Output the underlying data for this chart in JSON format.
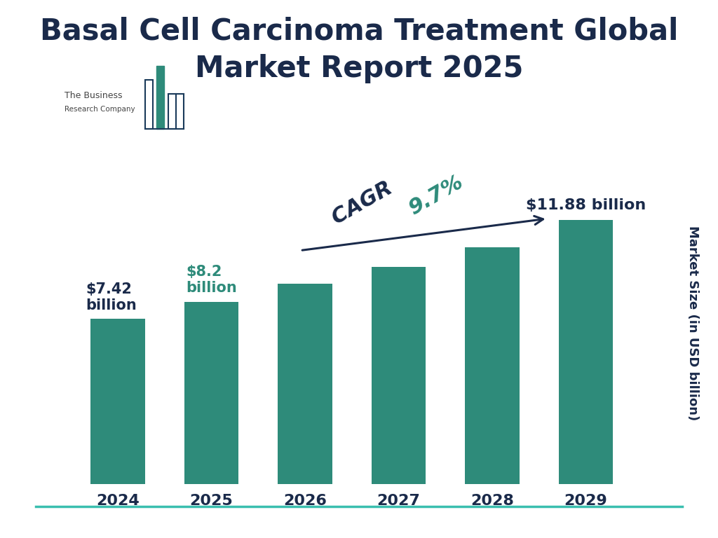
{
  "title": "Basal Cell Carcinoma Treatment Global\nMarket Report 2025",
  "title_color": "#1a2a4a",
  "title_fontsize": 30,
  "categories": [
    "2024",
    "2025",
    "2026",
    "2027",
    "2028",
    "2029"
  ],
  "values": [
    7.42,
    8.2,
    9.0,
    9.75,
    10.65,
    11.88
  ],
  "bar_color": "#2e8b7a",
  "bar_width": 0.58,
  "ylabel": "Market Size (in USD billion)",
  "ylabel_color": "#1a2a4a",
  "ylabel_fontsize": 13,
  "tick_label_fontsize": 16,
  "tick_label_color": "#1a2a4a",
  "background_color": "#ffffff",
  "annotation_2024_label": "$7.42\nbillion",
  "annotation_2025_label": "$8.2\nbillion",
  "annotation_2029_label": "$11.88 billion",
  "annotation_color_2024": "#1a2a4a",
  "annotation_color_2025": "#2e8b7a",
  "annotation_color_2029": "#1a2a4a",
  "annotation_fontsize": 15,
  "cagr_text_cagr": "CAGR ",
  "cagr_text_val": "9.7%",
  "cagr_color": "#2e8b7a",
  "cagr_dark_color": "#1a2a4a",
  "cagr_fontsize": 22,
  "arrow_color": "#1a2a4a",
  "ylim_max": 14.5,
  "bottom_line_color": "#3abfaf",
  "logo_text_color": "#444444",
  "logo_outline_color": "#1a3a5a",
  "logo_fill_color": "#2e8b7a"
}
